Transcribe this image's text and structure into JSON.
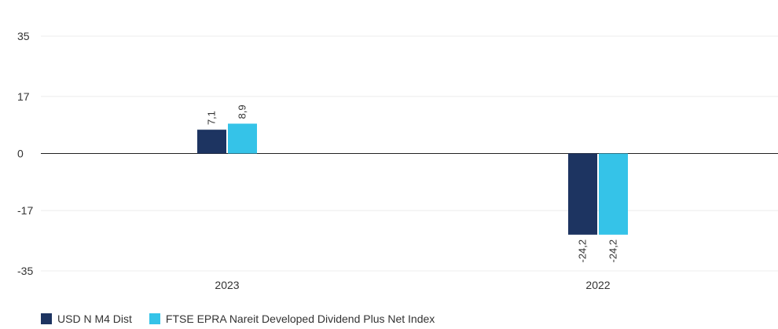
{
  "chart_data": {
    "type": "bar",
    "categories": [
      "2023",
      "2022"
    ],
    "series": [
      {
        "name": "USD N M4 Dist",
        "values": [
          7.1,
          -24.2
        ],
        "color": "#1d3461"
      },
      {
        "name": "FTSE EPRA Nareit Developed Dividend Plus Net Index",
        "values": [
          8.9,
          -24.2
        ],
        "color": "#35c3e8"
      }
    ],
    "data_labels": [
      [
        "7,1",
        "-24,2"
      ],
      [
        "8,9",
        "-24,2"
      ]
    ],
    "yticks": [
      35,
      17,
      0,
      -17,
      -35
    ],
    "ylim": [
      -35,
      35
    ],
    "grid": true,
    "legend_position": "bottom-left"
  }
}
